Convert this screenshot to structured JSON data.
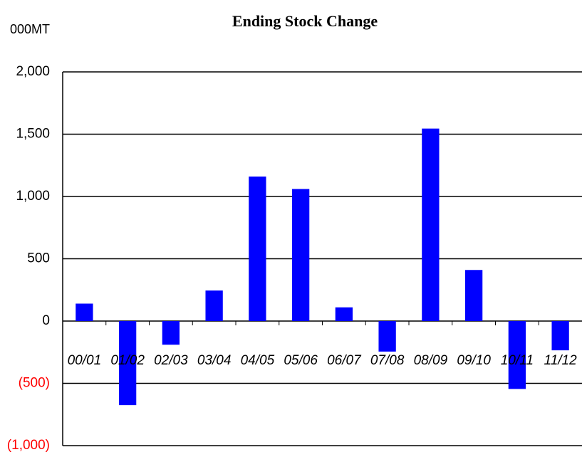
{
  "chart_data": {
    "type": "bar",
    "title": "Ending Stock Change",
    "y_label": "000MT",
    "categories": [
      "00/01",
      "01/02",
      "02/03",
      "03/04",
      "04/05",
      "05/06",
      "06/07",
      "07/08",
      "08/09",
      "09/10",
      "10/11",
      "11/12"
    ],
    "values": [
      140,
      -675,
      -190,
      245,
      1160,
      1060,
      110,
      -245,
      1545,
      410,
      -545,
      -235
    ],
    "color": "#0000ff",
    "negative_tick_color": "#ff0000",
    "ylim": [
      -1000,
      2000
    ],
    "yticks": [
      {
        "value": -1000,
        "label": "(1,000)"
      },
      {
        "value": -500,
        "label": "(500)"
      },
      0,
      500,
      {
        "value": 1000,
        "label": "1,000"
      },
      {
        "value": 1500,
        "label": "1,500"
      },
      {
        "value": 2000,
        "label": "2,000"
      }
    ],
    "grid": true
  }
}
